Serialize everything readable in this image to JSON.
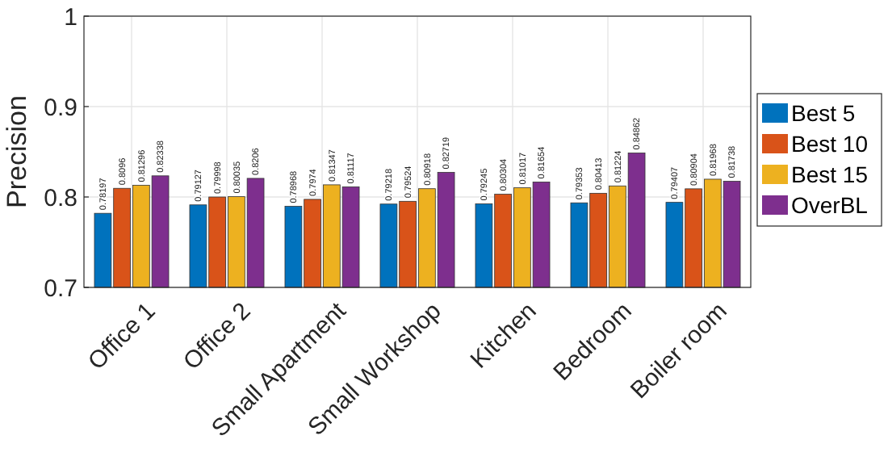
{
  "chart_data": {
    "type": "bar",
    "ylabel": "Precision",
    "categories": [
      "Office 1",
      "Office 2",
      "Small Apartment",
      "Small Workshop",
      "Kitchen",
      "Bedroom",
      "Boiler room"
    ],
    "series": [
      {
        "name": "Best 5",
        "color": "#0072bd",
        "values": [
          0.78197,
          0.79127,
          0.78968,
          0.79218,
          0.79245,
          0.79353,
          0.79407
        ]
      },
      {
        "name": "Best 10",
        "color": "#d95319",
        "values": [
          0.8096,
          0.79998,
          0.7974,
          0.79524,
          0.80304,
          0.80413,
          0.80904
        ]
      },
      {
        "name": "Best 15",
        "color": "#edb120",
        "values": [
          0.81296,
          0.80035,
          0.81347,
          0.80918,
          0.81017,
          0.81224,
          0.81968
        ]
      },
      {
        "name": "OverBL",
        "color": "#7e2f8e",
        "values": [
          0.82338,
          0.8206,
          0.81117,
          0.82719,
          0.81654,
          0.84862,
          0.81738
        ]
      }
    ],
    "ylim": [
      0.7,
      1
    ],
    "yticks": [
      0.7,
      0.8,
      0.9,
      {
        "value": 1,
        "label": "1"
      }
    ],
    "grid": true,
    "legend": "right",
    "data_labels": true
  }
}
